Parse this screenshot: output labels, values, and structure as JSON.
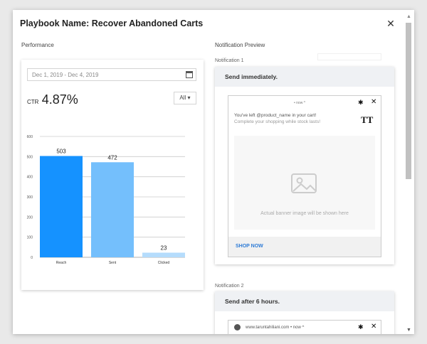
{
  "modal": {
    "title": "Playbook Name: Recover Abandoned Carts",
    "close_icon": "✕"
  },
  "performance": {
    "label": "Performance",
    "date_range": "Dec 1, 2019 - Dec 4, 2019",
    "ctr_label": "CTR",
    "ctr_value": "4.87%",
    "filter": "All ▾"
  },
  "chart_data": {
    "type": "bar",
    "categories": [
      "Reach",
      "Sent",
      "Clicked"
    ],
    "values": [
      503,
      472,
      23
    ],
    "colors": [
      "#1592ff",
      "#74bffc",
      "#b5dcfc"
    ],
    "ylim": [
      0,
      600
    ],
    "yticks": [
      "0",
      "100",
      "200",
      "300",
      "400",
      "500",
      "600"
    ],
    "title": "",
    "xlabel": "",
    "ylabel": ""
  },
  "preview": {
    "label": "Notification Preview",
    "n1_label": "Notification 1",
    "n1_header": "Send immediately.",
    "n1_meta": "• now ^",
    "n1_msg1": "You've left @product_name in your cart!",
    "n1_msg2": "Complete your shopping while stock lasts!",
    "n1_logo": "TT",
    "banner_text": "Actual banner image will be shown here",
    "cta": "SHOP NOW",
    "n2_label": "Notification 2",
    "n2_header": "Send after 6 hours.",
    "n2_meta": "www.taruntahiliani.com • now ^"
  },
  "icons": {
    "gear": "✱",
    "close": "✕"
  }
}
